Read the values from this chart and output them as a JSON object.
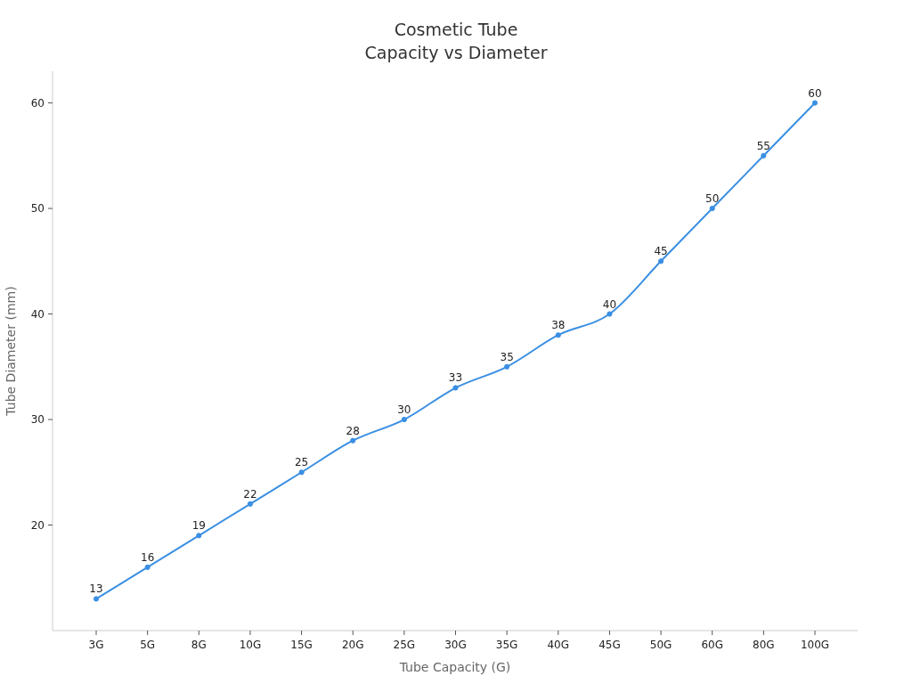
{
  "chart_data": {
    "type": "line",
    "title": "Cosmetic Tube\nCapacity vs Diameter",
    "xlabel": "Tube Capacity (G)",
    "ylabel": "Tube Diameter (mm)",
    "categories": [
      "3G",
      "5G",
      "8G",
      "10G",
      "15G",
      "20G",
      "25G",
      "30G",
      "35G",
      "40G",
      "45G",
      "50G",
      "60G",
      "80G",
      "100G"
    ],
    "series": [
      {
        "color": "#3a8fe3",
        "values": [
          13,
          16,
          19,
          22,
          25,
          28,
          30,
          33,
          35,
          38,
          40,
          45,
          50,
          55,
          60
        ]
      }
    ],
    "ylim": [
      10,
      63
    ],
    "yticks": [
      20,
      30,
      40,
      50,
      60
    ],
    "grid": false,
    "legend": false,
    "marker": "circle",
    "line_style": "solid",
    "data_labels": true
  }
}
